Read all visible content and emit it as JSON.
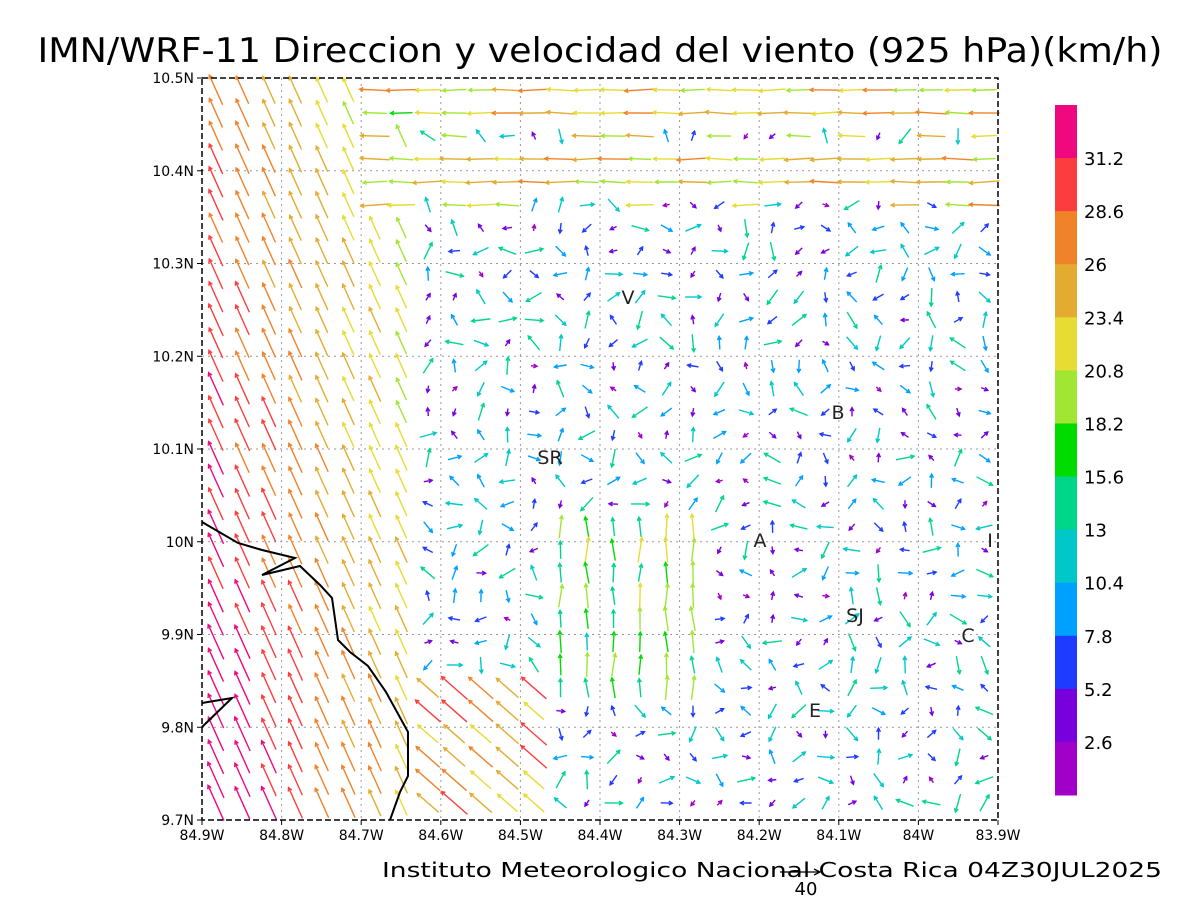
{
  "title": "IMN/WRF-11 Direccion y velocidad del viento (925 hPa)(km/h)",
  "footer": "Instituto Meteorologico Nacional Costa Rica  04Z30JUL2025",
  "reference_vector": {
    "label": "40",
    "value_kmh": 40
  },
  "x_ticks": [
    "84.9W",
    "84.8W",
    "84.7W",
    "84.6W",
    "84.5W",
    "84.4W",
    "84.3W",
    "84.2W",
    "84.1W",
    "84W",
    "83.9W"
  ],
  "y_ticks": [
    "10.5N",
    "10.4N",
    "10.3N",
    "10.2N",
    "10.1N",
    "10N",
    "9.9N",
    "9.8N",
    "9.7N"
  ],
  "colorbar": {
    "labels": [
      "31.2",
      "28.6",
      "26",
      "23.4",
      "20.8",
      "18.2",
      "15.6",
      "13",
      "10.4",
      "7.8",
      "5.2",
      "2.6"
    ],
    "colors_top_to_bottom": [
      "#f0087f",
      "#fc3d3d",
      "#f0832a",
      "#e3ac30",
      "#e6dc33",
      "#a2e634",
      "#00dc00",
      "#00d68a",
      "#00c8c8",
      "#00a0ff",
      "#1e3cff",
      "#7800dc",
      "#a000c8"
    ]
  },
  "places": [
    {
      "label": "V"
    },
    {
      "label": "B"
    },
    {
      "label": "SR"
    },
    {
      "label": "A"
    },
    {
      "label": "SJ"
    },
    {
      "label": "C"
    },
    {
      "label": "E"
    },
    {
      "label": "I"
    }
  ]
}
